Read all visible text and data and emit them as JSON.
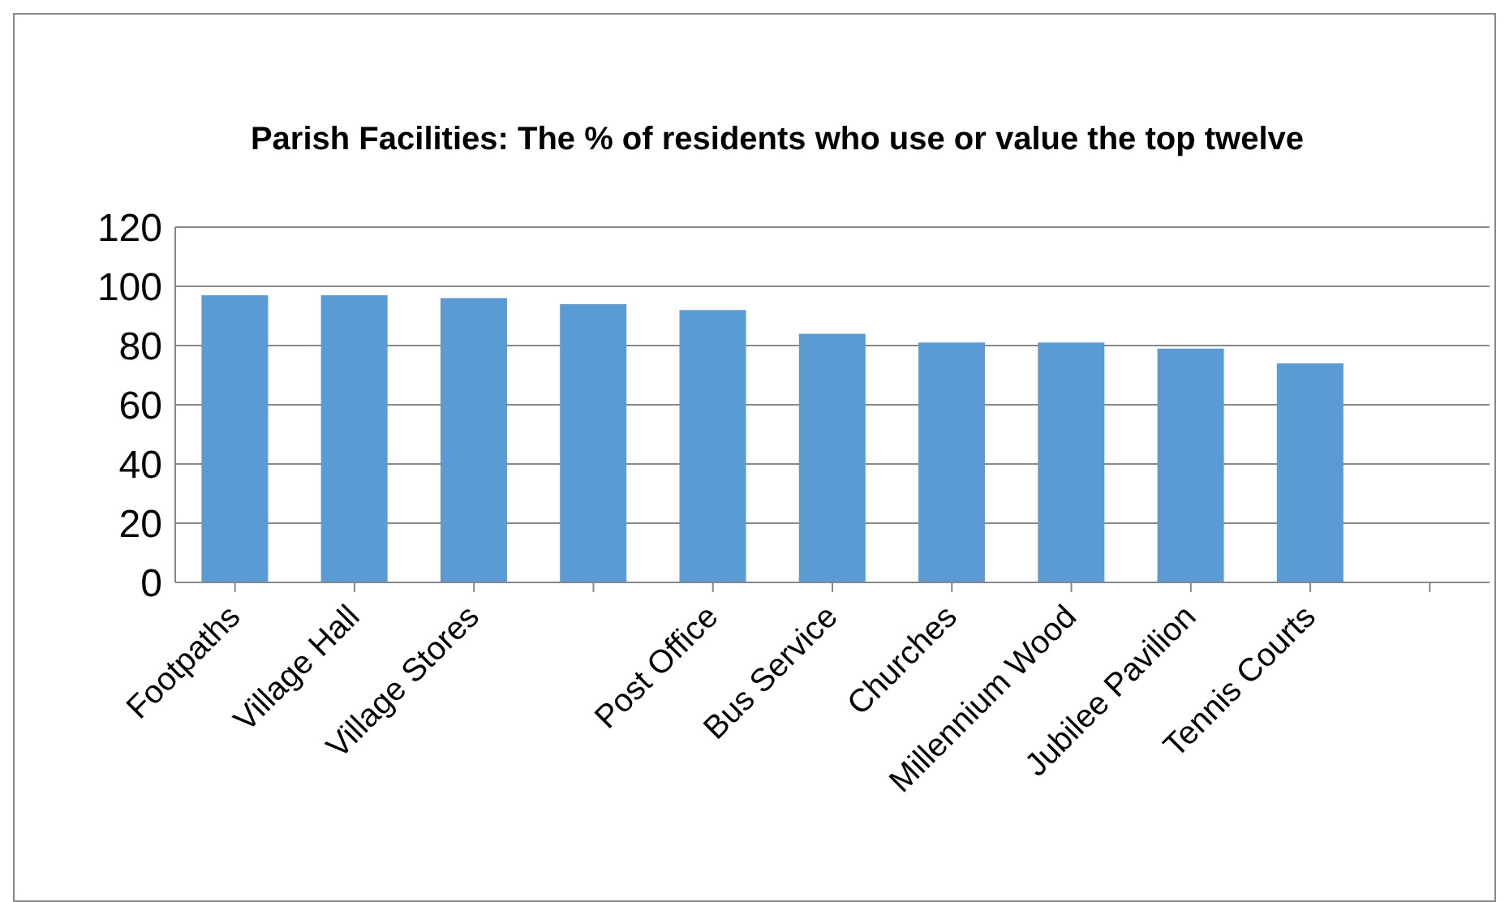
{
  "chart_data": {
    "type": "bar",
    "title": "Parish Facilities: The % of residents who use or value  the top twelve",
    "categories": [
      "Footpaths",
      "Village Hall",
      "Village Stores",
      null,
      "Post Office",
      "Bus Service",
      "Churches",
      "Millennium Wood",
      "Jubilee Pavilion",
      "Tennis Courts",
      null
    ],
    "values": [
      97,
      97,
      96,
      94,
      92,
      84,
      81,
      81,
      79,
      74,
      null
    ],
    "color": "#5b9bd5",
    "ylim": [
      0,
      120
    ],
    "yticks": [
      0,
      20,
      40,
      60,
      80,
      100,
      120
    ],
    "grid": "y",
    "legend": false
  }
}
